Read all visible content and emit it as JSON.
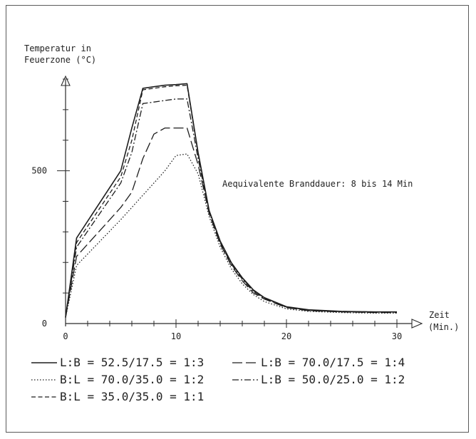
{
  "chart_data": {
    "type": "line",
    "ylabel_lines": [
      "Temperatur in",
      "Feuerzone (°C)"
    ],
    "xlabel_lines": [
      "Zeit",
      "(Min.)"
    ],
    "xlim": [
      0,
      30
    ],
    "ylim": [
      0,
      800
    ],
    "xticks": [
      0,
      10,
      20,
      30
    ],
    "xtick_labels": [
      "0",
      "10",
      "20",
      "30"
    ],
    "yticks": [
      0,
      500
    ],
    "ytick_labels": [
      "0",
      "500"
    ],
    "grid": false,
    "annotation": "Aequivalente Branddauer: 8 bis 14 Min",
    "series": [
      {
        "name": "L:B = 52.5/17.5 = 1:3",
        "dash": "solid",
        "x": [
          0,
          1,
          5,
          6,
          7,
          8,
          9,
          10,
          11,
          12,
          13,
          14,
          15,
          16,
          17,
          18,
          20,
          22,
          25,
          28,
          30
        ],
        "y": [
          20,
          280,
          500,
          640,
          770,
          775,
          780,
          782,
          785,
          560,
          370,
          270,
          200,
          150,
          110,
          85,
          55,
          45,
          40,
          38,
          38
        ]
      },
      {
        "name": "L:B = 70.0/17.5 = 1:4",
        "dash": "longdash",
        "x": [
          0,
          1,
          5,
          6,
          7,
          8,
          9,
          10,
          11,
          12,
          13,
          14,
          15,
          16,
          17,
          18,
          20,
          22,
          25,
          28,
          30
        ],
        "y": [
          20,
          220,
          380,
          430,
          540,
          620,
          640,
          640,
          640,
          520,
          360,
          260,
          190,
          140,
          100,
          80,
          52,
          42,
          38,
          36,
          36
        ]
      },
      {
        "name": "B:L = 70.0/35.0 = 1:2",
        "dash": "dotted",
        "x": [
          0,
          1,
          5,
          6,
          7,
          8,
          9,
          10,
          11,
          12,
          13,
          14,
          15,
          16,
          17,
          18,
          20,
          22,
          25,
          28,
          30
        ],
        "y": [
          20,
          190,
          340,
          380,
          420,
          460,
          500,
          550,
          555,
          490,
          350,
          250,
          180,
          130,
          95,
          72,
          48,
          40,
          36,
          34,
          34
        ]
      },
      {
        "name": "L:B = 50.0/25.0 = 1:2",
        "dash": "dashdot",
        "x": [
          0,
          1,
          5,
          6,
          7,
          8,
          9,
          10,
          11,
          12,
          13,
          14,
          15,
          16,
          17,
          18,
          20,
          22,
          25,
          28,
          30
        ],
        "y": [
          20,
          250,
          460,
          560,
          720,
          725,
          730,
          735,
          735,
          540,
          365,
          265,
          195,
          145,
          105,
          82,
          53,
          43,
          39,
          37,
          37
        ]
      },
      {
        "name": "B:L = 35.0/35.0 = 1:1",
        "dash": "dashed",
        "x": [
          0,
          1,
          5,
          6,
          7,
          8,
          9,
          10,
          11,
          12,
          13,
          14,
          15,
          16,
          17,
          18,
          20,
          22,
          25,
          28,
          30
        ],
        "y": [
          20,
          265,
          480,
          600,
          765,
          770,
          775,
          778,
          780,
          555,
          368,
          268,
          198,
          148,
          108,
          84,
          54,
          44,
          40,
          38,
          38
        ]
      }
    ],
    "legend_order": [
      0,
      1,
      2,
      3,
      4
    ]
  }
}
